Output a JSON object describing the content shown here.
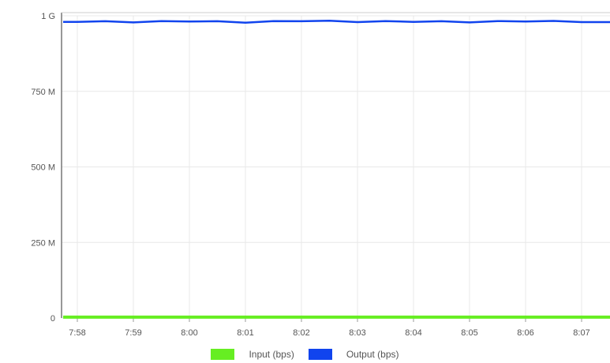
{
  "chart_data": {
    "type": "line",
    "x": [
      "7:58",
      "7:59",
      "8:00",
      "8:01",
      "8:02",
      "8:03",
      "8:04",
      "8:05",
      "8:06",
      "8:07"
    ],
    "yticks": [
      {
        "value": 0,
        "label": "0"
      },
      {
        "value": 250,
        "label": "250 M"
      },
      {
        "value": 500,
        "label": "500 M"
      },
      {
        "value": 750,
        "label": "750 M"
      },
      {
        "value": 1000,
        "label": "1 G"
      }
    ],
    "ylim": [
      0,
      1000
    ],
    "grid": true,
    "legend_position": "bottom",
    "series": [
      {
        "name": "Input (bps)",
        "color": "#66ee22",
        "values": [
          3,
          3,
          3,
          3,
          3,
          3,
          3,
          3,
          3,
          3
        ]
      },
      {
        "name": "Output (bps)",
        "color": "#1144ee",
        "values": [
          980,
          978,
          981,
          977,
          982,
          979,
          980,
          978,
          981,
          979
        ]
      }
    ]
  }
}
